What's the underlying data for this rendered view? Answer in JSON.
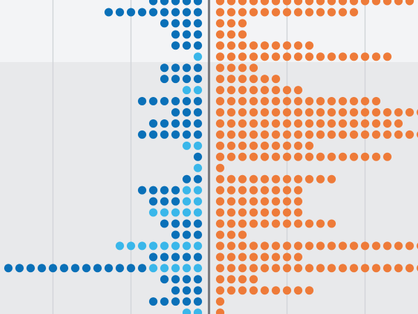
{
  "chart_data": {
    "type": "dot-matrix",
    "title": "",
    "xlabel": "",
    "ylabel": "",
    "legend": "none",
    "grid": true,
    "colors": {
      "left_primary": "#0a70b8",
      "left_secondary": "#3ab7ea",
      "right": "#ee7b39",
      "axis": "#6c6f74",
      "grid": "#d2d5d9",
      "band_light": "#f3f4f6",
      "band_dark": "#e8e9eb"
    },
    "rows": [
      {
        "left_dark": 5,
        "left_light": 0,
        "right": 18
      },
      {
        "left_dark": 9,
        "left_light": 0,
        "right": 13
      },
      {
        "left_dark": 4,
        "left_light": 0,
        "right": 3
      },
      {
        "left_dark": 3,
        "left_light": 0,
        "right": 3
      },
      {
        "left_dark": 3,
        "left_light": 0,
        "right": 9
      },
      {
        "left_dark": 0,
        "left_light": 1,
        "right": 16
      },
      {
        "left_dark": 4,
        "left_light": 0,
        "right": 4
      },
      {
        "left_dark": 4,
        "left_light": 0,
        "right": 6
      },
      {
        "left_dark": 0,
        "left_light": 2,
        "right": 8
      },
      {
        "left_dark": 6,
        "left_light": 0,
        "right": 15
      },
      {
        "left_dark": 3,
        "left_light": 0,
        "right": 19
      },
      {
        "left_dark": 5,
        "left_light": 0,
        "right": 17
      },
      {
        "left_dark": 6,
        "left_light": 0,
        "right": 19
      },
      {
        "left_dark": 0,
        "left_light": 2,
        "right": 9
      },
      {
        "left_dark": 1,
        "left_light": 0,
        "right": 16
      },
      {
        "left_dark": 0,
        "left_light": 1,
        "right": 1
      },
      {
        "left_dark": 2,
        "left_light": 0,
        "right": 11
      },
      {
        "left_dark": 4,
        "left_light": 2,
        "right": 8
      },
      {
        "left_dark": 3,
        "left_light": 2,
        "right": 8
      },
      {
        "left_dark": 0,
        "left_light": 5,
        "right": 8
      },
      {
        "left_dark": 4,
        "left_light": 0,
        "right": 11
      },
      {
        "left_dark": 3,
        "left_light": 0,
        "right": 3
      },
      {
        "left_dark": 0,
        "left_light": 8,
        "right": 19
      },
      {
        "left_dark": 5,
        "left_light": 0,
        "right": 8
      },
      {
        "left_dark": 13,
        "left_light": 5,
        "right": 19
      },
      {
        "left_dark": 4,
        "left_light": 0,
        "right": 4
      },
      {
        "left_dark": 3,
        "left_light": 0,
        "right": 9
      },
      {
        "left_dark": 5,
        "left_light": 0,
        "right": 1
      },
      {
        "left_dark": 0,
        "left_light": 2,
        "right": 1
      }
    ]
  }
}
